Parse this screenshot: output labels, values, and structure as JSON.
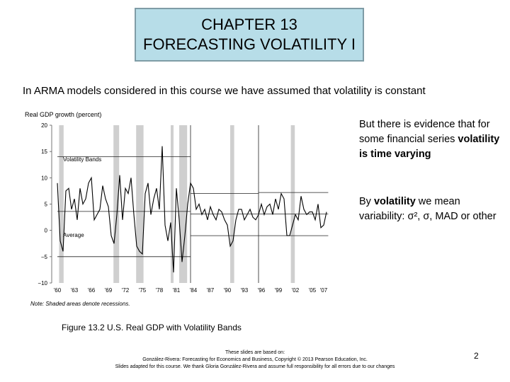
{
  "slide": {
    "title_line1": "CHAPTER 13",
    "title_line2": "FORECASTING VOLATILITY I",
    "intro": "In ARMA models considered in this course we have assumed that volatility is constant",
    "bullet1": {
      "prefix": "But there is evidence that for some financial series ",
      "bold": "volatility is time varying"
    },
    "bullet2": {
      "prefix": "By ",
      "bold": "volatility",
      "suffix": " we mean variability: σ², σ, MAD or other"
    },
    "caption": "Figure 13.2  U.S. Real GDP with Volatility Bands",
    "footer_line1": "These slides are based on:",
    "footer_line2": "González-Rivera: Forecasting for Economics and Business, Copyright © 2013 Pearson Education, Inc.",
    "footer_line3": "Slides adapted for this course. We thank Gloria González-Rivera and assume full responsibility for all errors due to our changes",
    "page_number": "2"
  },
  "colors": {
    "title_bg": "#b7dde8",
    "recession_shade": "#cfcfcf",
    "series": "#000000"
  },
  "chart_data": {
    "type": "line",
    "title": "Real GDP growth (percent)",
    "note": "Note: Shaded areas denote recessions.",
    "ylim": [
      -10,
      20
    ],
    "yticks": [
      20,
      15,
      10,
      5,
      0,
      -5,
      -10
    ],
    "xlim": [
      1959,
      2008
    ],
    "xticks": [
      "'60",
      "'63",
      "'66",
      "'69",
      "'72",
      "'75",
      "'78",
      "'81",
      "'84",
      "'87",
      "'90",
      "'93",
      "'96",
      "'99",
      "'02",
      "'05",
      "'07"
    ],
    "xtick_years": [
      1960,
      1963,
      1966,
      1969,
      1972,
      1975,
      1978,
      1981,
      1984,
      1987,
      1990,
      1993,
      1996,
      1999,
      2002,
      2005,
      2007
    ],
    "annotations": {
      "volatility_bands": "Volatility Bands",
      "average": "Average"
    },
    "recessions": [
      [
        1960.3,
        1961.1
      ],
      [
        1969.9,
        1970.9
      ],
      [
        1973.9,
        1975.2
      ],
      [
        1980.0,
        1980.5
      ],
      [
        1981.5,
        1982.9
      ],
      [
        1990.5,
        1991.2
      ],
      [
        2001.2,
        2001.9
      ]
    ],
    "regimes": [
      {
        "start": 1960,
        "end": 1983.5,
        "mean": 3.6,
        "upper": 14,
        "lower": -5
      },
      {
        "start": 1983.5,
        "end": 1995.5,
        "mean": 3.1,
        "upper": 7,
        "lower": -1
      },
      {
        "start": 1995.5,
        "end": 2007.8,
        "mean": 3.1,
        "upper": 7.2,
        "lower": -1
      }
    ],
    "series": [
      {
        "x": [
          1960.0,
          1960.5,
          1961.0,
          1961.5,
          1962.0,
          1962.5,
          1963.0,
          1963.5,
          1964.0,
          1964.5,
          1965.0,
          1965.5,
          1966.0,
          1966.5,
          1967.0,
          1967.5,
          1968.0,
          1968.5,
          1969.0,
          1969.5,
          1970.0,
          1970.5,
          1971.0,
          1971.5,
          1972.0,
          1972.5,
          1973.0,
          1973.5,
          1974.0,
          1974.5,
          1975.0,
          1975.5,
          1976.0,
          1976.5,
          1977.0,
          1977.5,
          1978.0,
          1978.5,
          1979.0,
          1979.5,
          1980.0,
          1980.5,
          1981.0,
          1981.5,
          1982.0,
          1982.5,
          1983.0,
          1983.5,
          1984.0,
          1984.5,
          1985.0,
          1985.5,
          1986.0,
          1986.5,
          1987.0,
          1987.5,
          1988.0,
          1988.5,
          1989.0,
          1989.5,
          1990.0,
          1990.5,
          1991.0,
          1991.5,
          1992.0,
          1992.5,
          1993.0,
          1993.5,
          1994.0,
          1994.5,
          1995.0,
          1995.5,
          1996.0,
          1996.5,
          1997.0,
          1997.5,
          1998.0,
          1998.5,
          1999.0,
          1999.5,
          2000.0,
          2000.5,
          2001.0,
          2001.5,
          2002.0,
          2002.5,
          2003.0,
          2003.5,
          2004.0,
          2004.5,
          2005.0,
          2005.5,
          2006.0,
          2006.5,
          2007.0,
          2007.5
        ],
        "y": [
          9.0,
          -2.0,
          -4.0,
          7.5,
          8.0,
          4.0,
          6.0,
          2.0,
          8.0,
          5.0,
          6.0,
          9.0,
          10.0,
          2.0,
          3.0,
          4.0,
          8.5,
          6.0,
          4.5,
          -1.0,
          -2.5,
          3.0,
          10.5,
          2.0,
          8.0,
          7.0,
          10.0,
          3.0,
          -3.0,
          -4.0,
          -4.5,
          7.0,
          9.0,
          3.0,
          6.0,
          8.0,
          4.0,
          16.0,
          1.0,
          -2.0,
          1.5,
          -8.0,
          8.0,
          2.0,
          -6.0,
          -1.0,
          5.0,
          9.0,
          8.0,
          4.0,
          5.0,
          3.0,
          4.0,
          2.0,
          4.5,
          3.0,
          2.0,
          4.0,
          3.5,
          2.0,
          1.0,
          -3.0,
          -2.0,
          2.0,
          4.0,
          4.0,
          2.0,
          3.0,
          4.0,
          2.5,
          2.0,
          3.0,
          5.0,
          3.0,
          4.5,
          5.0,
          3.0,
          6.0,
          4.0,
          7.0,
          6.0,
          -1.0,
          -1.0,
          1.0,
          3.0,
          2.0,
          6.5,
          4.0,
          3.0,
          3.5,
          3.5,
          2.0,
          5.0,
          0.5,
          1.0,
          3.5
        ]
      }
    ]
  }
}
